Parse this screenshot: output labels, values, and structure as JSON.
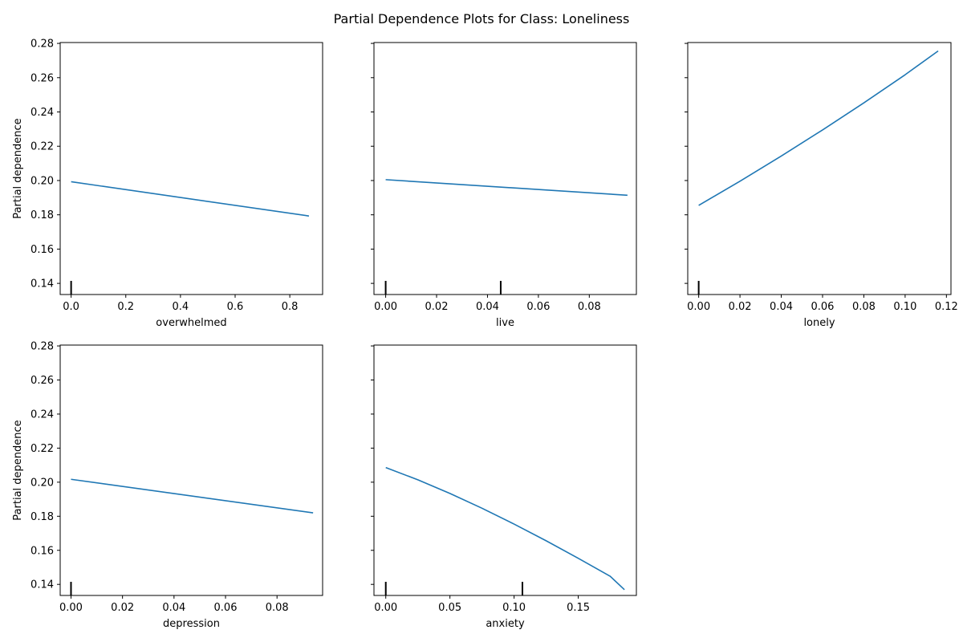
{
  "figure": {
    "title": "Partial Dependence Plots for Class: Loneliness"
  },
  "chart_data": [
    {
      "type": "line",
      "xlabel": "overwhelmed",
      "ylabel": "Partial dependence",
      "xlim": [
        -0.04,
        0.92
      ],
      "ylim": [
        0.1335,
        0.2805
      ],
      "x_ticks": [
        0.0,
        0.2,
        0.4,
        0.6,
        0.8
      ],
      "x_tick_labels": [
        "0.0",
        "0.2",
        "0.4",
        "0.6",
        "0.8"
      ],
      "y_ticks": [
        0.14,
        0.16,
        0.18,
        0.2,
        0.22,
        0.24,
        0.26,
        0.28
      ],
      "y_tick_labels": [
        "0.14",
        "0.16",
        "0.18",
        "0.20",
        "0.22",
        "0.24",
        "0.26",
        "0.28"
      ],
      "show_y_labels": true,
      "line_color": "#1f77b4",
      "series": [
        {
          "x": [
            0.0,
            0.87
          ],
          "y": [
            0.1993,
            0.1793
          ]
        }
      ],
      "deciles": [
        0.0
      ]
    },
    {
      "type": "line",
      "xlabel": "live",
      "ylabel": "",
      "xlim": [
        -0.0046,
        0.0985
      ],
      "ylim": [
        0.1335,
        0.2805
      ],
      "x_ticks": [
        0.0,
        0.02,
        0.04,
        0.06,
        0.08
      ],
      "x_tick_labels": [
        "0.00",
        "0.02",
        "0.04",
        "0.06",
        "0.08"
      ],
      "y_ticks": [
        0.14,
        0.16,
        0.18,
        0.2,
        0.22,
        0.24,
        0.26,
        0.28
      ],
      "y_tick_labels": [],
      "show_y_labels": false,
      "line_color": "#1f77b4",
      "series": [
        {
          "x": [
            0.0,
            0.095
          ],
          "y": [
            0.2005,
            0.1914
          ]
        }
      ],
      "deciles": [
        0.0,
        0.0452
      ]
    },
    {
      "type": "line",
      "xlabel": "lonely",
      "ylabel": "",
      "xlim": [
        -0.0053,
        0.1222
      ],
      "ylim": [
        0.1335,
        0.2805
      ],
      "x_ticks": [
        0.0,
        0.02,
        0.04,
        0.06,
        0.08,
        0.1,
        0.12
      ],
      "x_tick_labels": [
        "0.00",
        "0.02",
        "0.04",
        "0.06",
        "0.08",
        "0.10",
        "0.12"
      ],
      "y_ticks": [
        0.14,
        0.16,
        0.18,
        0.2,
        0.22,
        0.24,
        0.26,
        0.28
      ],
      "y_tick_labels": [],
      "show_y_labels": false,
      "line_color": "#1f77b4",
      "series": [
        {
          "x": [
            0.0,
            0.02,
            0.04,
            0.06,
            0.08,
            0.1,
            0.116
          ],
          "y": [
            0.1855,
            0.1996,
            0.2143,
            0.2295,
            0.2453,
            0.2617,
            0.2756
          ]
        }
      ],
      "deciles": [
        0.0
      ]
    },
    {
      "type": "line",
      "xlabel": "depression",
      "ylabel": "Partial dependence",
      "xlim": [
        -0.0042,
        0.0977
      ],
      "ylim": [
        0.1335,
        0.2805
      ],
      "x_ticks": [
        0.0,
        0.02,
        0.04,
        0.06,
        0.08
      ],
      "x_tick_labels": [
        "0.00",
        "0.02",
        "0.04",
        "0.06",
        "0.08"
      ],
      "y_ticks": [
        0.14,
        0.16,
        0.18,
        0.2,
        0.22,
        0.24,
        0.26,
        0.28
      ],
      "y_tick_labels": [
        "0.14",
        "0.16",
        "0.18",
        "0.20",
        "0.22",
        "0.24",
        "0.26",
        "0.28"
      ],
      "show_y_labels": true,
      "line_color": "#1f77b4",
      "series": [
        {
          "x": [
            0.0,
            0.094
          ],
          "y": [
            0.2017,
            0.182
          ]
        }
      ],
      "deciles": [
        0.0
      ]
    },
    {
      "type": "line",
      "xlabel": "anxiety",
      "ylabel": "",
      "xlim": [
        -0.0092,
        0.1953
      ],
      "ylim": [
        0.1335,
        0.2805
      ],
      "x_ticks": [
        0.0,
        0.05,
        0.1,
        0.15
      ],
      "x_tick_labels": [
        "0.00",
        "0.05",
        "0.10",
        "0.15"
      ],
      "y_ticks": [
        0.14,
        0.16,
        0.18,
        0.2,
        0.22,
        0.24,
        0.26,
        0.28
      ],
      "y_tick_labels": [],
      "show_y_labels": false,
      "line_color": "#1f77b4",
      "series": [
        {
          "x": [
            0.0,
            0.025,
            0.05,
            0.075,
            0.1,
            0.125,
            0.15,
            0.175,
            0.186
          ],
          "y": [
            0.2086,
            0.2014,
            0.1934,
            0.1847,
            0.1754,
            0.1656,
            0.1553,
            0.1447,
            0.1369
          ]
        }
      ],
      "deciles": [
        0.0,
        0.1065
      ]
    }
  ]
}
